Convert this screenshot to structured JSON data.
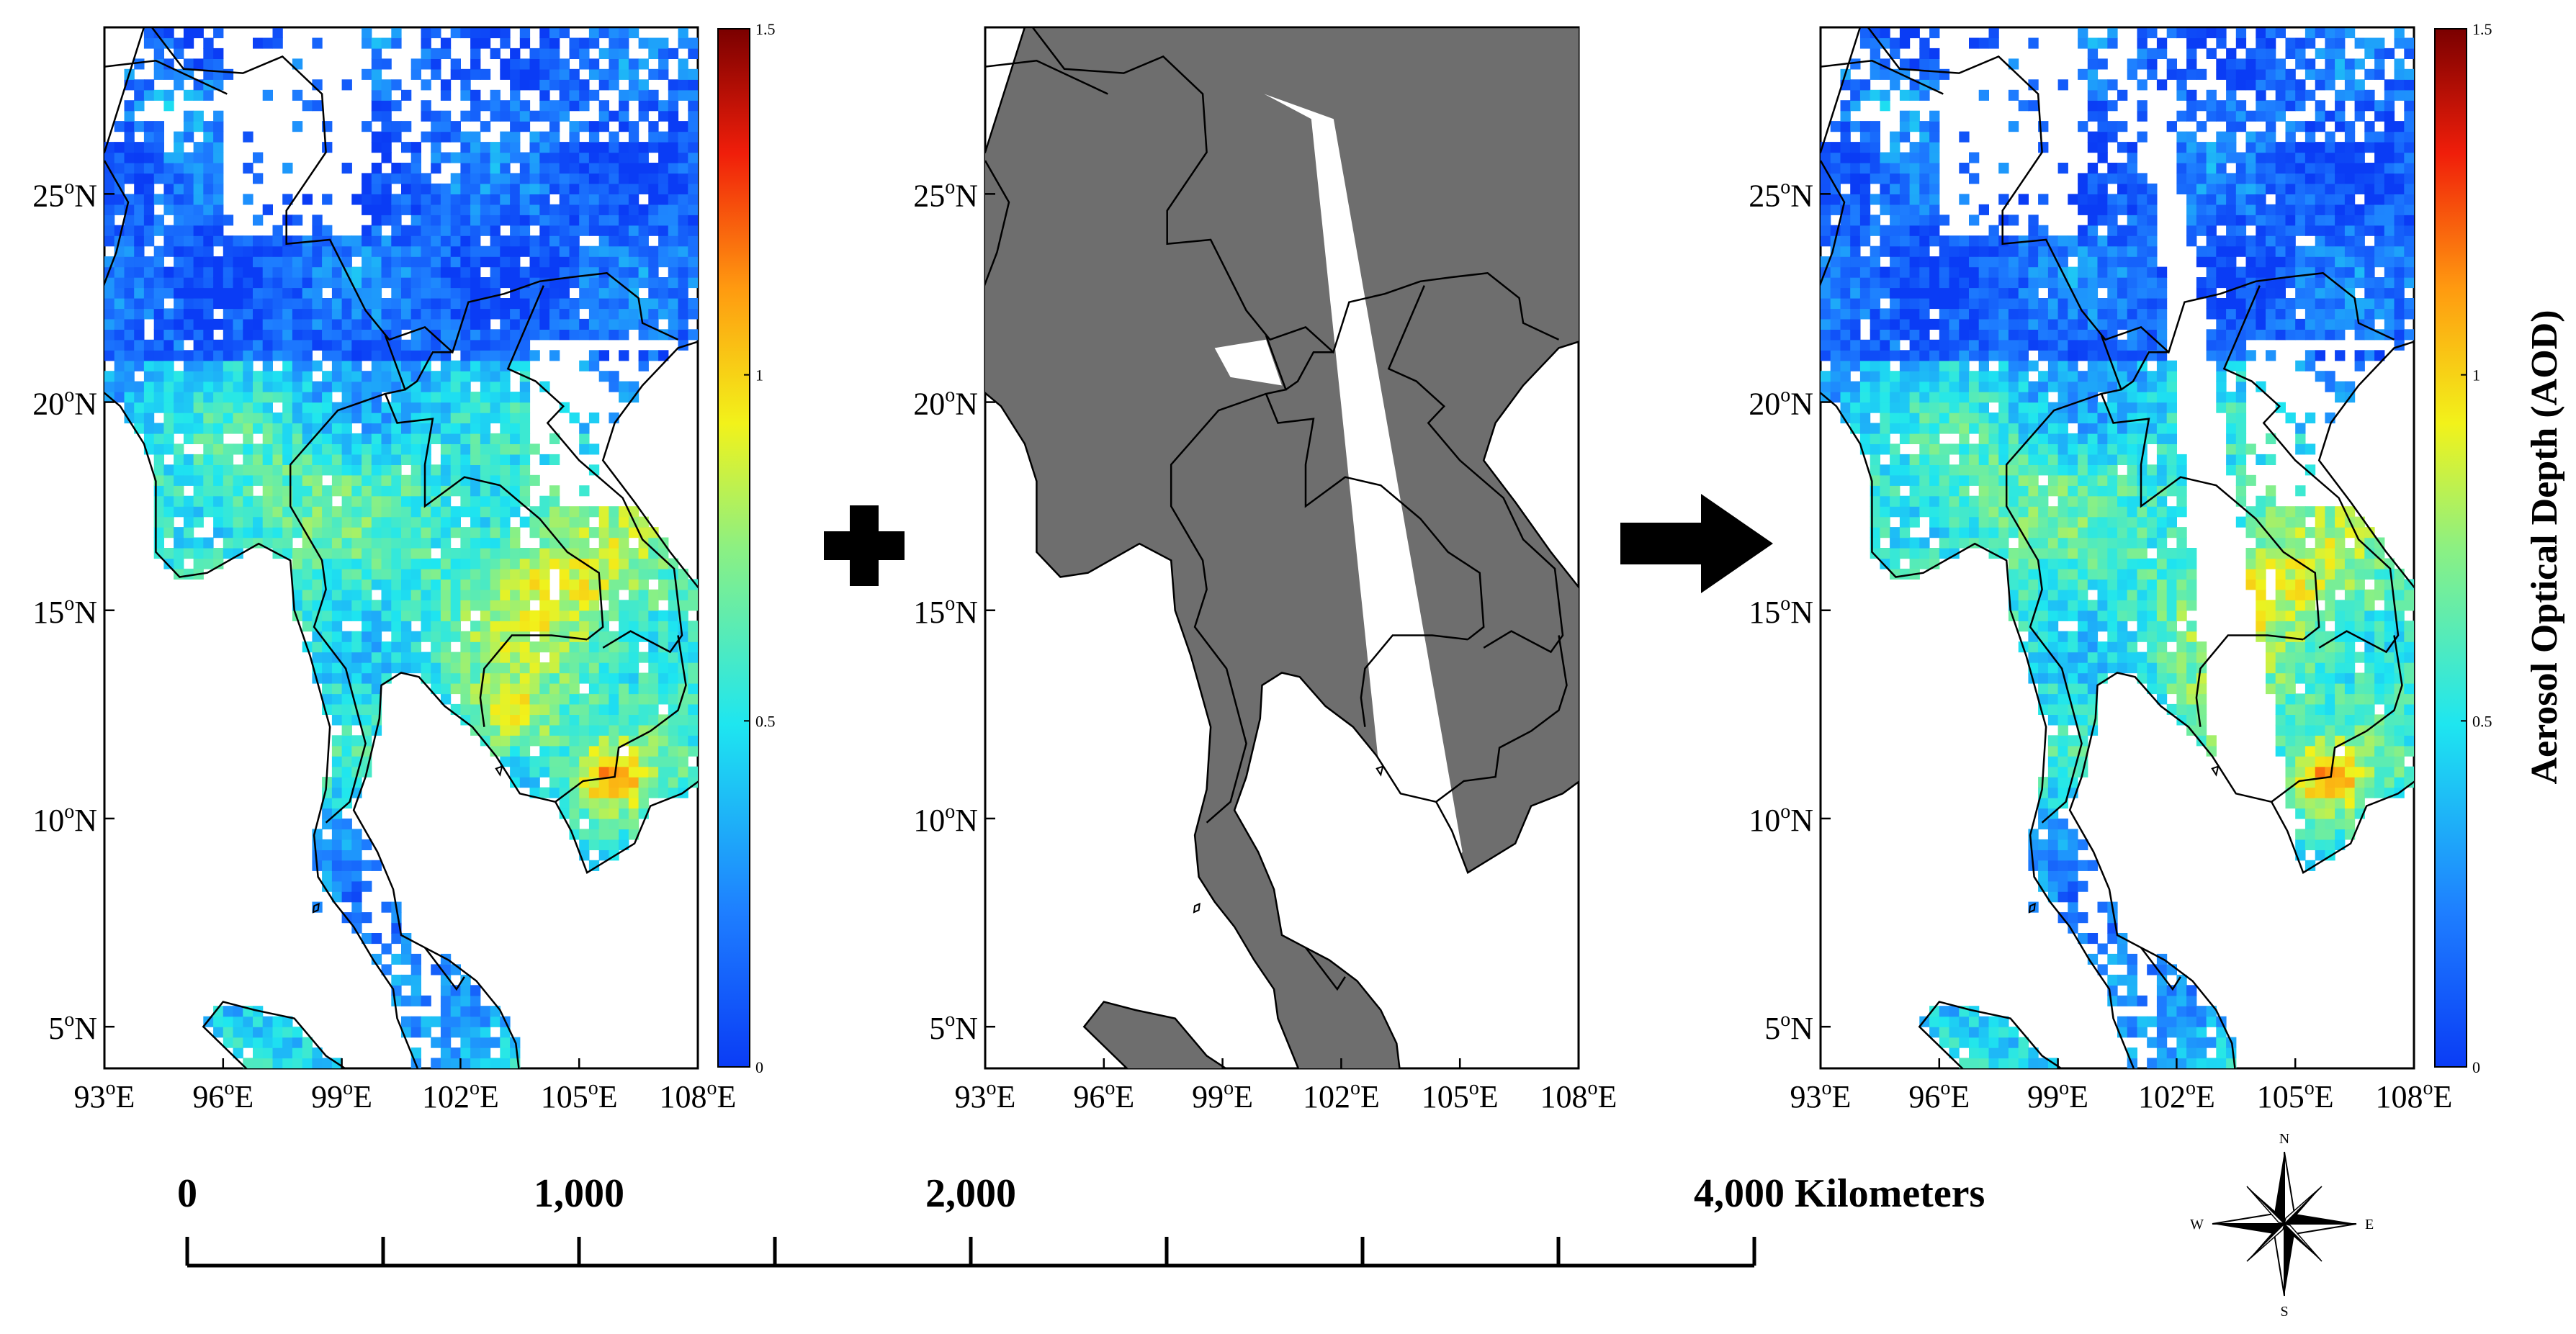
{
  "panels": [
    {
      "id": "aod-original",
      "kind": "aod"
    },
    {
      "id": "mask",
      "kind": "mask"
    },
    {
      "id": "aod-masked",
      "kind": "aod-masked"
    }
  ],
  "axes": {
    "lat_ticks": [
      {
        "deg": "5",
        "sup": "o",
        "hem": "N"
      },
      {
        "deg": "10",
        "sup": "o",
        "hem": "N"
      },
      {
        "deg": "15",
        "sup": "o",
        "hem": "N"
      },
      {
        "deg": "20",
        "sup": "o",
        "hem": "N"
      },
      {
        "deg": "25",
        "sup": "o",
        "hem": "N"
      }
    ],
    "lon_ticks": [
      {
        "deg": "93",
        "sup": "o",
        "hem": "E"
      },
      {
        "deg": "96",
        "sup": "o",
        "hem": "E"
      },
      {
        "deg": "99",
        "sup": "o",
        "hem": "E"
      },
      {
        "deg": "102",
        "sup": "o",
        "hem": "E"
      },
      {
        "deg": "105",
        "sup": "o",
        "hem": "E"
      },
      {
        "deg": "108",
        "sup": "o",
        "hem": "E"
      }
    ],
    "lon_range": [
      93,
      108
    ],
    "lat_range": [
      4,
      29
    ]
  },
  "colorbar": {
    "min": 0,
    "max": 1.5,
    "ticks": [
      "0",
      "0.5",
      "1",
      "1.5"
    ],
    "tick_values": [
      0,
      0.5,
      1,
      1.5
    ],
    "title": "Aerosol Optical Depth (AOD)"
  },
  "operators": {
    "plus_icon": "plus-icon",
    "arrow_icon": "arrow-right-icon"
  },
  "scale_bar": {
    "labels": [
      "0",
      "1,000",
      "2,000",
      "4,000 Kilometers"
    ],
    "label_values_km": [
      0,
      1000,
      2000,
      4000
    ]
  },
  "compass": {
    "icon": "compass-rose-icon",
    "n": "N",
    "s": "S",
    "e": "E",
    "w": "W"
  },
  "colors": {
    "mask_gray": "#6e6e6e",
    "border": "#000000",
    "aod_low": "#1a4fe0",
    "aod_high": "#8b0000"
  }
}
